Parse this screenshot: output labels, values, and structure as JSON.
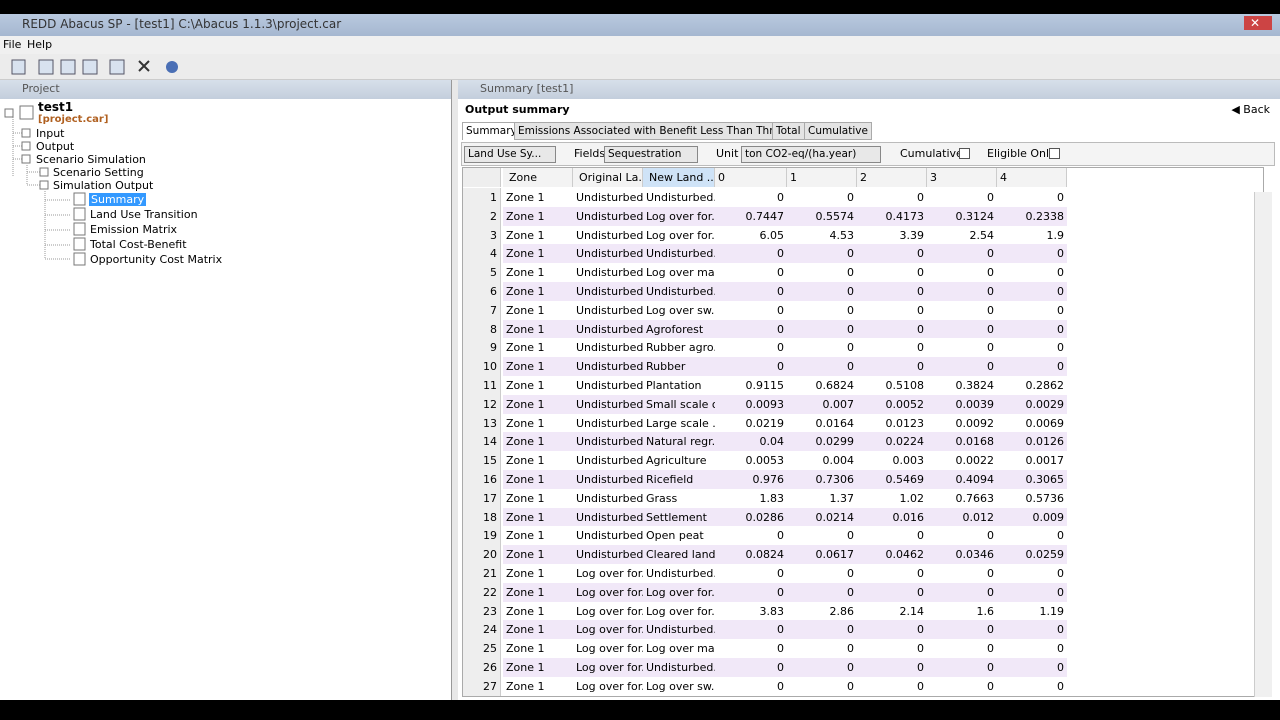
{
  "window": {
    "title": "REDD Abacus SP - [test1] C:\\Abacus 1.1.3\\project.car"
  },
  "menu": [
    "File",
    "Help"
  ],
  "project_panel": {
    "title": "Project",
    "tree": {
      "root": "test1",
      "file": "[project.car]",
      "items": [
        "Input",
        "Output",
        "Scenario Simulation",
        "Scenario Setting",
        "Simulation Output",
        "Summary",
        "Land Use Transition",
        "Emission Matrix",
        "Total Cost-Benefit",
        "Opportunity Cost Matrix"
      ]
    }
  },
  "summary_panel": {
    "title": "Summary [test1]",
    "heading": "Output summary",
    "back": "Back",
    "tabs": [
      "Summary",
      "Emissions Associated with Benefit Less Than Threshold",
      "Total",
      "Cumulative"
    ],
    "filters": {
      "land_use": "Land Use Sy...",
      "fields_label": "Fields:",
      "fields": "Sequestration",
      "unit_label": "Unit",
      "unit": "ton CO2-eq/(ha.year)",
      "cumulative": "Cumulative :",
      "eligible": "Eligible Only:"
    },
    "table": {
      "columns": [
        "Zone",
        "Original La...",
        "New Land ...",
        "0",
        "1",
        "2",
        "3",
        "4"
      ],
      "rows": [
        [
          1,
          "Zone 1",
          "Undisturbed...",
          "Undisturbed...",
          0,
          0,
          0,
          0,
          0
        ],
        [
          2,
          "Zone 1",
          "Undisturbed...",
          "Log over for...",
          0.7447,
          0.5574,
          0.4173,
          0.3124,
          0.2338
        ],
        [
          3,
          "Zone 1",
          "Undisturbed...",
          "Log over for...",
          6.05,
          4.53,
          3.39,
          2.54,
          1.9
        ],
        [
          4,
          "Zone 1",
          "Undisturbed...",
          "Undisturbed...",
          0,
          0,
          0,
          0,
          0
        ],
        [
          5,
          "Zone 1",
          "Undisturbed...",
          "Log over ma...",
          0,
          0,
          0,
          0,
          0
        ],
        [
          6,
          "Zone 1",
          "Undisturbed...",
          "Undisturbed...",
          0,
          0,
          0,
          0,
          0
        ],
        [
          7,
          "Zone 1",
          "Undisturbed...",
          "Log over sw...",
          0,
          0,
          0,
          0,
          0
        ],
        [
          8,
          "Zone 1",
          "Undisturbed...",
          "Agroforest",
          0,
          0,
          0,
          0,
          0
        ],
        [
          9,
          "Zone 1",
          "Undisturbed...",
          "Rubber agro...",
          0,
          0,
          0,
          0,
          0
        ],
        [
          10,
          "Zone 1",
          "Undisturbed...",
          "Rubber",
          0,
          0,
          0,
          0,
          0
        ],
        [
          11,
          "Zone 1",
          "Undisturbed...",
          "Plantation",
          0.9115,
          0.6824,
          0.5108,
          0.3824,
          0.2862
        ],
        [
          12,
          "Zone 1",
          "Undisturbed...",
          "Small scale o...",
          0.0093,
          0.007,
          0.0052,
          0.0039,
          0.0029
        ],
        [
          13,
          "Zone 1",
          "Undisturbed...",
          "Large scale ...",
          0.0219,
          0.0164,
          0.0123,
          0.0092,
          0.0069
        ],
        [
          14,
          "Zone 1",
          "Undisturbed...",
          "Natural regr...",
          0.04,
          0.0299,
          0.0224,
          0.0168,
          0.0126
        ],
        [
          15,
          "Zone 1",
          "Undisturbed...",
          "Agriculture",
          0.0053,
          0.004,
          0.003,
          0.0022,
          0.0017
        ],
        [
          16,
          "Zone 1",
          "Undisturbed...",
          "Ricefield",
          0.976,
          0.7306,
          0.5469,
          0.4094,
          0.3065
        ],
        [
          17,
          "Zone 1",
          "Undisturbed...",
          "Grass",
          1.83,
          1.37,
          1.02,
          0.7663,
          0.5736
        ],
        [
          18,
          "Zone 1",
          "Undisturbed...",
          "Settlement",
          0.0286,
          0.0214,
          0.016,
          0.012,
          0.009
        ],
        [
          19,
          "Zone 1",
          "Undisturbed...",
          "Open peat",
          0,
          0,
          0,
          0,
          0
        ],
        [
          20,
          "Zone 1",
          "Undisturbed...",
          "Cleared land",
          0.0824,
          0.0617,
          0.0462,
          0.0346,
          0.0259
        ],
        [
          21,
          "Zone 1",
          "Log over for...",
          "Undisturbed...",
          0,
          0,
          0,
          0,
          0
        ],
        [
          22,
          "Zone 1",
          "Log over for...",
          "Log over for...",
          0,
          0,
          0,
          0,
          0
        ],
        [
          23,
          "Zone 1",
          "Log over for...",
          "Log over for...",
          3.83,
          2.86,
          2.14,
          1.6,
          1.19
        ],
        [
          24,
          "Zone 1",
          "Log over for...",
          "Undisturbed...",
          0,
          0,
          0,
          0,
          0
        ],
        [
          25,
          "Zone 1",
          "Log over for...",
          "Log over ma...",
          0,
          0,
          0,
          0,
          0
        ],
        [
          26,
          "Zone 1",
          "Log over for...",
          "Undisturbed...",
          0,
          0,
          0,
          0,
          0
        ],
        [
          27,
          "Zone 1",
          "Log over for...",
          "Log over sw...",
          0,
          0,
          0,
          0,
          0
        ]
      ]
    }
  }
}
